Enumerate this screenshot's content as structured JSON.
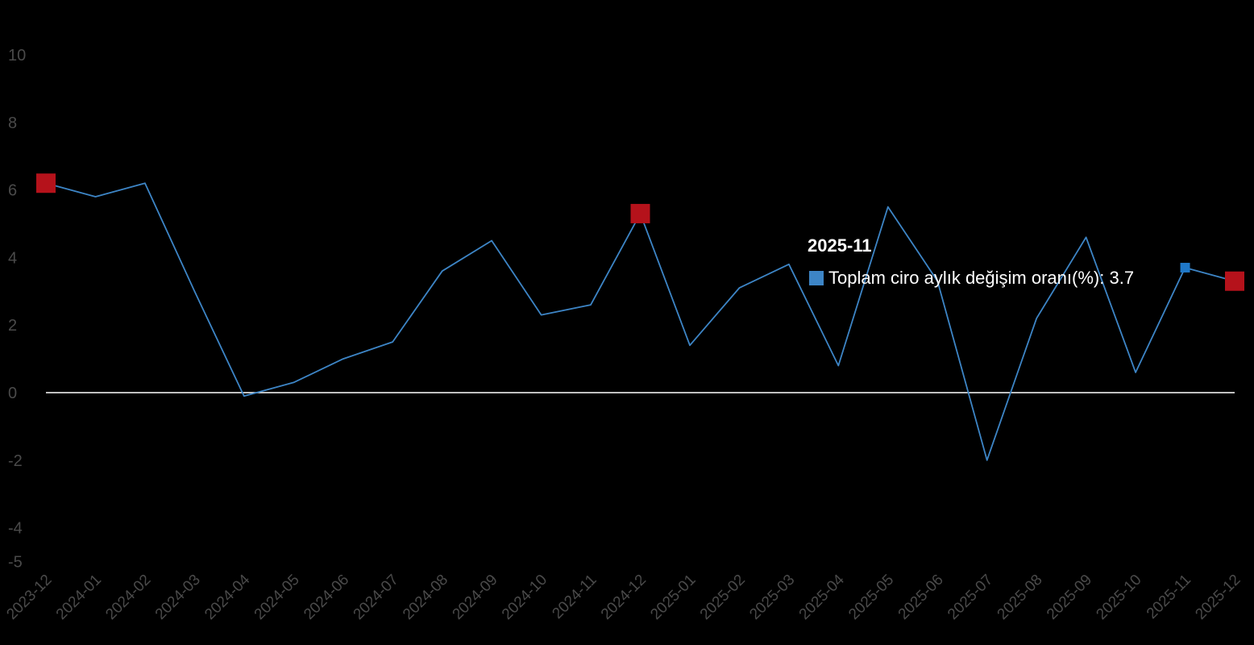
{
  "chart_data": {
    "type": "line",
    "categories": [
      "2023-12",
      "2024-01",
      "2024-02",
      "2024-03",
      "2024-04",
      "2024-05",
      "2024-06",
      "2024-07",
      "2024-08",
      "2024-09",
      "2024-10",
      "2024-11",
      "2024-12",
      "2025-01",
      "2025-02",
      "2025-03",
      "2025-04",
      "2025-05",
      "2025-06",
      "2025-07",
      "2025-08",
      "2025-09",
      "2025-10",
      "2025-11",
      "2025-12"
    ],
    "series": [
      {
        "name": "Toplam ciro aylık değişim oranı(%)",
        "values": [
          6.2,
          5.8,
          6.2,
          3.0,
          -0.1,
          0.3,
          1.0,
          1.5,
          3.6,
          4.5,
          2.3,
          2.6,
          5.3,
          1.4,
          3.1,
          3.8,
          0.8,
          5.5,
          3.3,
          -2.0,
          2.2,
          4.6,
          0.6,
          3.7,
          3.3
        ]
      }
    ],
    "highlighted_points": [
      "2023-12",
      "2024-12",
      "2025-12"
    ],
    "y_ticks": [
      10,
      8,
      6,
      4,
      2,
      0,
      -2,
      -4,
      -5
    ],
    "ylim": [
      -5,
      10
    ],
    "zero_line": true,
    "grid": false,
    "colors": {
      "background": "#000000",
      "line": "#3d85c6",
      "highlight_marker": "#b5121b",
      "active_marker": "#1f78c8",
      "zero_line": "#ffffff",
      "tick_label": "#4a4a4a"
    },
    "tooltip": {
      "title": "2025-11",
      "series_label": "Toplam ciro aylık değişim oranı(%)",
      "value_text": "3.7"
    }
  }
}
